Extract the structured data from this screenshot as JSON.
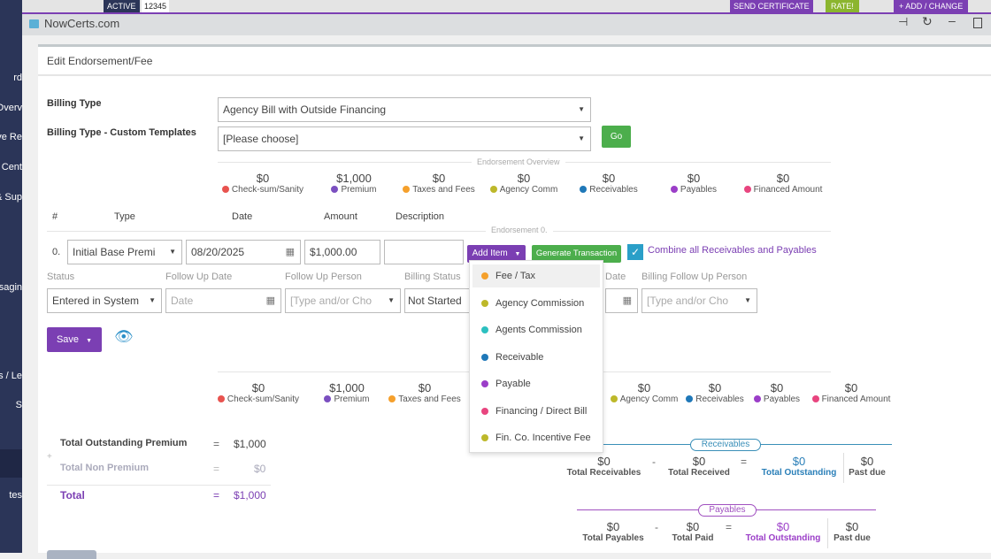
{
  "sidebar": {
    "items": [
      "rd",
      "Overv",
      "ve Re",
      "Cent",
      "& Sup",
      "sagin",
      "s / Le",
      "S",
      "tes"
    ]
  },
  "topbar": {
    "status": "ACTIVE",
    "id": "12345",
    "send_certificate": "SEND CERTIFICATE",
    "rate": "RATE!",
    "add_change": "+ ADD / CHANGE"
  },
  "window": {
    "title": "NowCerts.com"
  },
  "panel": {
    "title": "Edit Endorsement/Fee"
  },
  "form": {
    "billing_type_label": "Billing Type",
    "billing_type_value": "Agency Bill with Outside Financing",
    "custom_templates_label": "Billing Type - Custom Templates",
    "custom_templates_value": "[Please choose]",
    "go_label": "Go"
  },
  "overview": {
    "title": "Endorsement Overview",
    "items": [
      {
        "value": "$0",
        "label": "Check-sum/Sanity",
        "color": "#e8534f"
      },
      {
        "value": "$1,000",
        "label": "Premium",
        "color": "#7b4fc0"
      },
      {
        "value": "$0",
        "label": "Taxes and Fees",
        "color": "#f5a02c"
      },
      {
        "value": "$0",
        "label": "Agency Comm",
        "color": "#bdb82a"
      },
      {
        "value": "$0",
        "label": "Receivables",
        "color": "#1f78b8"
      },
      {
        "value": "$0",
        "label": "Payables",
        "color": "#9b3ec8"
      },
      {
        "value": "$0",
        "label": "Financed Amount",
        "color": "#e8457f"
      }
    ]
  },
  "table": {
    "headers": [
      "#",
      "Type",
      "Date",
      "Amount",
      "Description"
    ],
    "section": "Endorsement 0.",
    "row": {
      "num": "0.",
      "type": "Initial Base Premi",
      "date": "08/20/2025",
      "amount": "$1,000.00",
      "description": ""
    }
  },
  "actions": {
    "add_item": "Add Item",
    "generate": "Generate Transaction",
    "combine": "Combine all Receivables and Payables",
    "combine_checked": true
  },
  "fields": {
    "status_label": "Status",
    "status_value": "Entered in System",
    "follow_date_label": "Follow Up Date",
    "follow_date_placeholder": "Date",
    "follow_person_label": "Follow Up Person",
    "follow_person_placeholder": "[Type and/or Cho",
    "billing_status_label": "Billing Status",
    "billing_status_value": "Not Started",
    "date_label": "Date",
    "billing_follow_label": "Billing Follow Up Person",
    "billing_follow_placeholder": "[Type and/or Cho"
  },
  "save_label": "Save",
  "add_menu": [
    {
      "label": "Fee / Tax",
      "color": "#f5a02c"
    },
    {
      "label": "Agency Commission",
      "color": "#bdb82a"
    },
    {
      "label": "Agents Commission",
      "color": "#2cc0c0"
    },
    {
      "label": "Receivable",
      "color": "#1f78b8"
    },
    {
      "label": "Payable",
      "color": "#9b3ec8"
    },
    {
      "label": "Financing / Direct Bill",
      "color": "#e8457f"
    },
    {
      "label": "Fin. Co. Incentive Fee",
      "color": "#bdb82a"
    }
  ],
  "totals": {
    "outstanding_label": "Total Outstanding Premium",
    "outstanding_value": "$1,000",
    "non_premium_label": "Total Non Premium",
    "non_premium_value": "$0",
    "total_label": "Total",
    "total_value": "$1,000",
    "eq": "=",
    "plus": "+"
  },
  "receivables": {
    "title": "Receivables",
    "total": "$0",
    "total_label": "Total Receivables",
    "received": "$0",
    "received_label": "Total Received",
    "outstanding": "$0",
    "outstanding_label": "Total Outstanding",
    "past_due": "$0",
    "past_due_label": "Past due",
    "minus": "-",
    "eq": "="
  },
  "payables": {
    "title": "Payables",
    "total": "$0",
    "total_label": "Total Payables",
    "paid": "$0",
    "paid_label": "Total Paid",
    "outstanding": "$0",
    "outstanding_label": "Total Outstanding",
    "past_due": "$0",
    "past_due_label": "Past due",
    "minus": "-",
    "eq": "="
  }
}
